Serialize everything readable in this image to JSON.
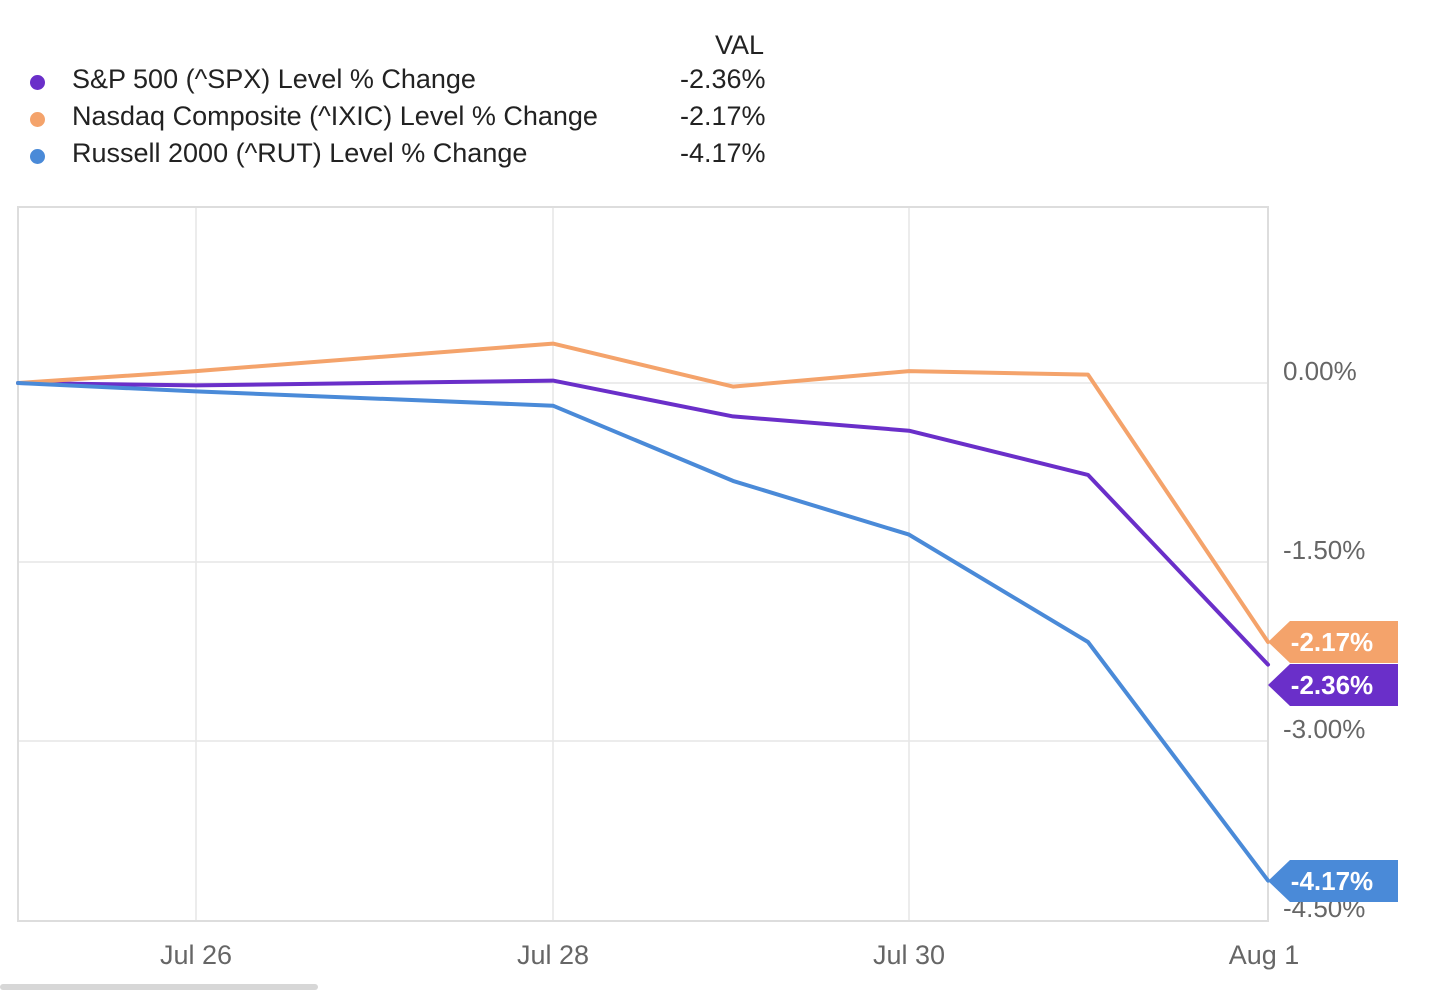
{
  "legend": {
    "header": "VAL",
    "items": [
      {
        "label": "S&P 500 (^SPX) Level % Change",
        "value": "-2.36%",
        "color": "#6a2fc9"
      },
      {
        "label": "Nasdaq Composite (^IXIC) Level % Change",
        "value": "-2.17%",
        "color": "#f4a36b"
      },
      {
        "label": "Russell 2000 (^RUT) Level % Change",
        "value": "-4.17%",
        "color": "#4a8ad8"
      }
    ]
  },
  "chart_data": {
    "type": "line",
    "x": [
      "Jul 25",
      "Jul 26",
      "Jul 28",
      "Jul 29",
      "Jul 30",
      "Jul 31",
      "Aug 1"
    ],
    "x_ticks": [
      "Jul 26",
      "Jul 28",
      "Jul 30",
      "Aug 1"
    ],
    "y_ticks": [
      "0.00%",
      "-1.50%",
      "-3.00%",
      "-4.50%"
    ],
    "y_tick_values": [
      0,
      -1.5,
      -3.0,
      -4.5
    ],
    "ylim": [
      -4.5,
      1.5
    ],
    "grid": true,
    "legend_position": "top-left",
    "series": [
      {
        "name": "S&P 500 (^SPX) Level % Change",
        "color": "#6a2fc9",
        "end_label": "-2.36%",
        "values": [
          0.0,
          -0.02,
          0.02,
          -0.28,
          -0.4,
          -0.77,
          -2.36
        ]
      },
      {
        "name": "Nasdaq Composite (^IXIC) Level % Change",
        "color": "#f4a36b",
        "end_label": "-2.17%",
        "values": [
          0.0,
          0.1,
          0.33,
          -0.03,
          0.1,
          0.07,
          -2.17
        ]
      },
      {
        "name": "Russell 2000 (^RUT) Level % Change",
        "color": "#4a8ad8",
        "end_label": "-4.17%",
        "values": [
          0.0,
          -0.07,
          -0.19,
          -0.82,
          -1.27,
          -2.17,
          -4.17
        ]
      }
    ]
  }
}
